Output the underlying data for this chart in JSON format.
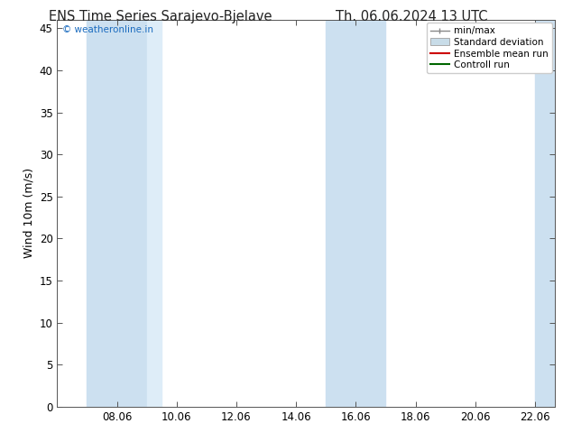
{
  "title_left": "ENS Time Series Sarajevo-Bjelave",
  "title_right": "Th. 06.06.2024 13 UTC",
  "ylabel": "Wind 10m (m/s)",
  "watermark": "© weatheronline.in",
  "watermark_color": "#1a6bbf",
  "xlim": [
    6.0,
    22.667
  ],
  "ylim": [
    0,
    46
  ],
  "yticks": [
    0,
    5,
    10,
    15,
    20,
    25,
    30,
    35,
    40,
    45
  ],
  "xticks": [
    8.0,
    10.0,
    12.0,
    14.0,
    16.0,
    18.0,
    20.0,
    22.0
  ],
  "xticklabels": [
    "08.06",
    "10.06",
    "12.06",
    "14.06",
    "16.06",
    "18.06",
    "20.06",
    "22.06"
  ],
  "background_color": "#ffffff",
  "plot_bg_color": "#ffffff",
  "shaded_bands": [
    {
      "x_start": 7.0,
      "x_end": 9.0,
      "color": "#cce0f0"
    },
    {
      "x_start": 9.0,
      "x_end": 9.5,
      "color": "#deedf8"
    },
    {
      "x_start": 15.0,
      "x_end": 17.0,
      "color": "#cce0f0"
    },
    {
      "x_start": 22.0,
      "x_end": 22.667,
      "color": "#cce0f0"
    }
  ],
  "legend_items": [
    {
      "label": "min/max",
      "color": "#a0b8cc",
      "type": "minmax"
    },
    {
      "label": "Standard deviation",
      "color": "#c8dce8",
      "type": "box"
    },
    {
      "label": "Ensemble mean run",
      "color": "#cc0000",
      "type": "line"
    },
    {
      "label": "Controll run",
      "color": "#006600",
      "type": "line"
    }
  ],
  "title_fontsize": 10.5,
  "axis_label_fontsize": 9,
  "tick_fontsize": 8.5,
  "legend_fontsize": 7.5
}
